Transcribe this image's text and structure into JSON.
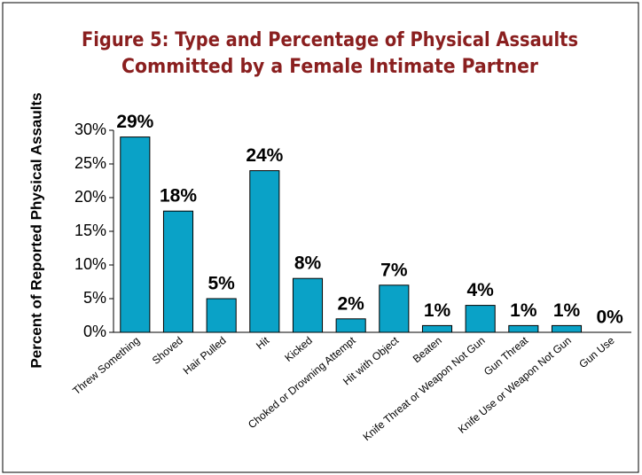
{
  "chart_data": {
    "type": "bar",
    "title": [
      "Figure 5: Type and Percentage of Physical Assaults",
      "Committed by a Female Intimate Partner"
    ],
    "ylabel": "Percent of Reported Physical Assaults",
    "categories": [
      "Threw Something",
      "Shoved",
      "Hair Pulled",
      "Hit",
      "Kicked",
      "Choked or Drowning Attempt",
      "Hit with Object",
      "Beaten",
      "Knife Threat or Weapon Not Gun",
      "Gun Threat",
      "Knife Use or Weapon Not Gun",
      "Gun Use"
    ],
    "values": [
      29,
      18,
      5,
      24,
      8,
      2,
      7,
      1,
      4,
      1,
      1,
      0
    ],
    "value_labels": [
      "29%",
      "18%",
      "5%",
      "24%",
      "8%",
      "2%",
      "7%",
      "1%",
      "4%",
      "1%",
      "1%",
      "0%"
    ],
    "color": "#0aa2c7",
    "ylim": [
      0,
      30
    ],
    "yticks": [
      {
        "value": 0,
        "label": "0%"
      },
      {
        "value": 5,
        "label": "5%"
      },
      {
        "value": 10,
        "label": "10%"
      },
      {
        "value": 15,
        "label": "15%"
      },
      {
        "value": 20,
        "label": "20%"
      },
      {
        "value": 25,
        "label": "25%"
      },
      {
        "value": 30,
        "label": "30%"
      }
    ],
    "grid": false
  }
}
